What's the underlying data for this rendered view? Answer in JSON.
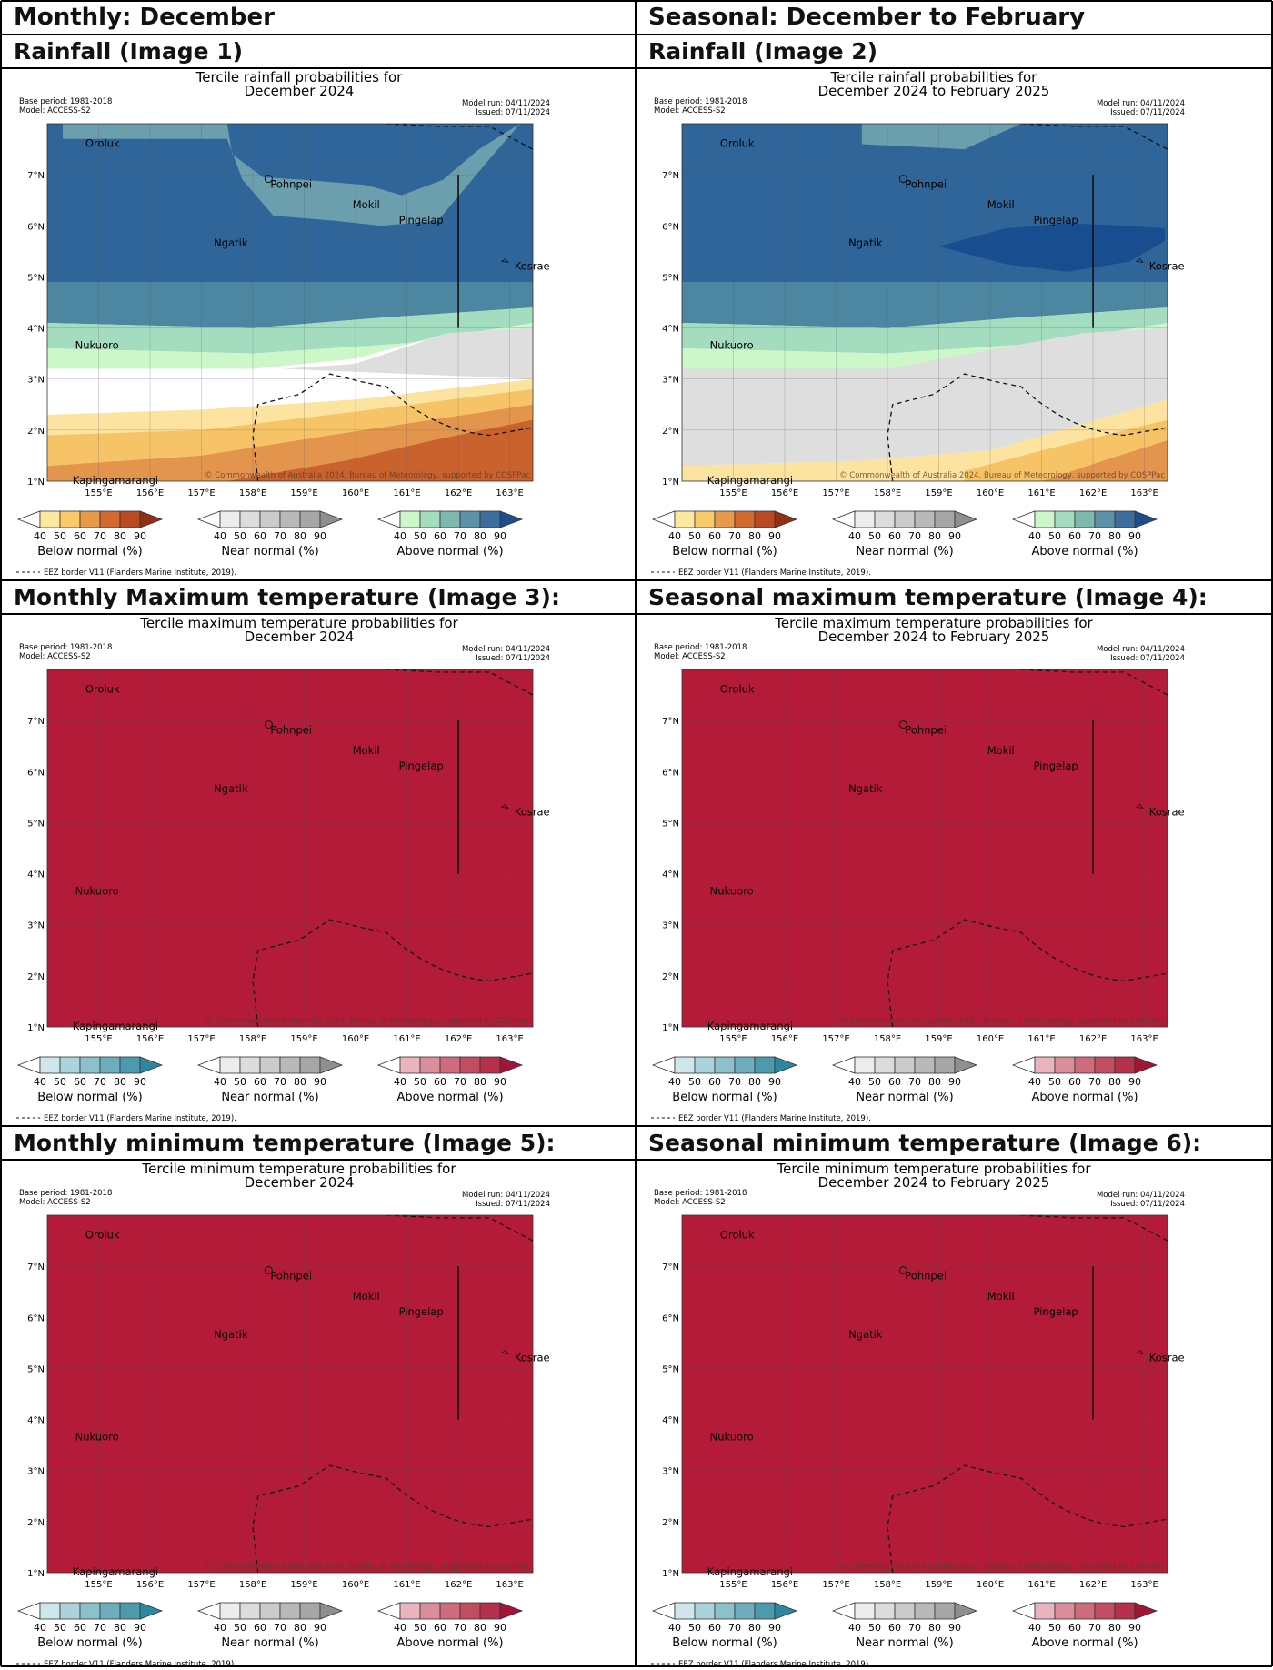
{
  "headers": {
    "left_top": "Monthly: December",
    "right_top": "Seasonal: December to February",
    "rows": [
      [
        "Rainfall (Image 1)",
        "Rainfall (Image 2)"
      ],
      [
        "Monthly Maximum temperature (Image 3):",
        "Seasonal maximum temperature (Image 4):"
      ],
      [
        "Monthly minimum temperature (Image 5):",
        "Seasonal minimum temperature (Image 6):"
      ]
    ]
  },
  "common": {
    "base_period": "Base period: 1981-2018",
    "model": "Model: ACCESS-S2",
    "model_run": "Model run: 04/11/2024",
    "issued": "Issued: 07/11/2024",
    "copyright": "© Commonwealth of Australia 2024, Bureau of Meteorology, supported by COSPPac",
    "eez_note": "EEZ border V11 (Flanders Marine Institute, 2019).",
    "lat_ticks": [
      "7°N",
      "6°N",
      "5°N",
      "4°N",
      "3°N",
      "2°N",
      "1°N"
    ],
    "lon_ticks": [
      "155°E",
      "156°E",
      "157°E",
      "158°E",
      "159°E",
      "160°E",
      "161°E",
      "162°E",
      "163°E"
    ],
    "cbar_ticks": [
      "40",
      "50",
      "60",
      "70",
      "80",
      "90"
    ],
    "places": [
      "Oroluk",
      "Pohnpei",
      "Mokil",
      "Pingelap",
      "Ngatik",
      "Kosrae",
      "Nukuoro",
      "Kapingamarangi"
    ]
  },
  "maps": [
    {
      "title1": "Tercile rainfall probabilities for",
      "title2": "December 2024",
      "kind": "rain_month",
      "cbars": [
        {
          "label": "Below normal (%)",
          "colors": [
            "#ffffff",
            "#fde8a0",
            "#f9c96a",
            "#e89a4b",
            "#d26a2f",
            "#b94a22",
            "#952f14"
          ]
        },
        {
          "label": "Near normal (%)",
          "colors": [
            "#ffffff",
            "#ececec",
            "#dcdcdc",
            "#cbcbcb",
            "#b9b9b9",
            "#a6a6a6",
            "#8f8f8f"
          ]
        },
        {
          "label": "Above normal (%)",
          "colors": [
            "#ffffff",
            "#ccf7c9",
            "#a4dcc0",
            "#7cb8ad",
            "#5a93a7",
            "#3b6d9f",
            "#1e4d8e"
          ]
        }
      ]
    },
    {
      "title1": "Tercile rainfall probabilities for",
      "title2": "December 2024 to February 2025",
      "kind": "rain_season",
      "cbars": [
        {
          "label": "Below normal (%)",
          "colors": [
            "#ffffff",
            "#fde8a0",
            "#f9c96a",
            "#e89a4b",
            "#d26a2f",
            "#b94a22",
            "#952f14"
          ]
        },
        {
          "label": "Near normal (%)",
          "colors": [
            "#ffffff",
            "#ececec",
            "#dcdcdc",
            "#cbcbcb",
            "#b9b9b9",
            "#a6a6a6",
            "#8f8f8f"
          ]
        },
        {
          "label": "Above normal (%)",
          "colors": [
            "#ffffff",
            "#ccf7c9",
            "#a4dcc0",
            "#7cb8ad",
            "#5a93a7",
            "#3b6d9f",
            "#1e4d8e"
          ]
        }
      ]
    },
    {
      "title1": "Tercile maximum temperature probabilities for",
      "title2": "December 2024",
      "kind": "temp",
      "cbars": [
        {
          "label": "Below normal (%)",
          "colors": [
            "#ffffff",
            "#cfe7ec",
            "#acd3dc",
            "#8cc0cc",
            "#6eadbd",
            "#4d9aae",
            "#2e879e"
          ]
        },
        {
          "label": "Near normal (%)",
          "colors": [
            "#ffffff",
            "#ececec",
            "#dcdcdc",
            "#cbcbcb",
            "#b9b9b9",
            "#a6a6a6",
            "#8f8f8f"
          ]
        },
        {
          "label": "Above normal (%)",
          "colors": [
            "#ffffff",
            "#eab4bf",
            "#dc8d9b",
            "#cf6b7c",
            "#c24d61",
            "#b5304a",
            "#a11537"
          ]
        }
      ]
    },
    {
      "title1": "Tercile maximum temperature probabilities for",
      "title2": "December 2024 to February 2025",
      "kind": "temp",
      "cbars": [
        {
          "label": "Below normal (%)",
          "colors": [
            "#ffffff",
            "#cfe7ec",
            "#acd3dc",
            "#8cc0cc",
            "#6eadbd",
            "#4d9aae",
            "#2e879e"
          ]
        },
        {
          "label": "Near normal (%)",
          "colors": [
            "#ffffff",
            "#ececec",
            "#dcdcdc",
            "#cbcbcb",
            "#b9b9b9",
            "#a6a6a6",
            "#8f8f8f"
          ]
        },
        {
          "label": "Above normal (%)",
          "colors": [
            "#ffffff",
            "#eab4bf",
            "#dc8d9b",
            "#cf6b7c",
            "#c24d61",
            "#b5304a",
            "#a11537"
          ]
        }
      ]
    },
    {
      "title1": "Tercile minimum temperature probabilities for",
      "title2": "December 2024",
      "kind": "temp",
      "cbars": [
        {
          "label": "Below normal (%)",
          "colors": [
            "#ffffff",
            "#cfe7ec",
            "#acd3dc",
            "#8cc0cc",
            "#6eadbd",
            "#4d9aae",
            "#2e879e"
          ]
        },
        {
          "label": "Near normal (%)",
          "colors": [
            "#ffffff",
            "#ececec",
            "#dcdcdc",
            "#cbcbcb",
            "#b9b9b9",
            "#a6a6a6",
            "#8f8f8f"
          ]
        },
        {
          "label": "Above normal (%)",
          "colors": [
            "#ffffff",
            "#eab4bf",
            "#dc8d9b",
            "#cf6b7c",
            "#c24d61",
            "#b5304a",
            "#a11537"
          ]
        }
      ]
    },
    {
      "title1": "Tercile minimum temperature probabilities for",
      "title2": "December 2024 to February 2025",
      "kind": "temp",
      "cbars": [
        {
          "label": "Below normal (%)",
          "colors": [
            "#ffffff",
            "#cfe7ec",
            "#acd3dc",
            "#8cc0cc",
            "#6eadbd",
            "#4d9aae",
            "#2e879e"
          ]
        },
        {
          "label": "Near normal (%)",
          "colors": [
            "#ffffff",
            "#ececec",
            "#dcdcdc",
            "#cbcbcb",
            "#b9b9b9",
            "#a6a6a6",
            "#8f8f8f"
          ]
        },
        {
          "label": "Above normal (%)",
          "colors": [
            "#ffffff",
            "#eab4bf",
            "#dc8d9b",
            "#cf6b7c",
            "#c24d61",
            "#b5304a",
            "#a11537"
          ]
        }
      ]
    }
  ],
  "colors": {
    "temp_fill": "#b31b38",
    "rain_blue_dark": "#2f6598",
    "rain_blue_darker": "#184d8f",
    "rain_teal": "#6c9fae",
    "rain_green1": "#a4dcc0",
    "rain_green2": "#ccf7c9",
    "rain_grey": "#dedede",
    "rain_yellow": "#fde3a0",
    "rain_orange1": "#f6c466",
    "rain_orange2": "#e4954d",
    "rain_orange3": "#c9622d"
  }
}
